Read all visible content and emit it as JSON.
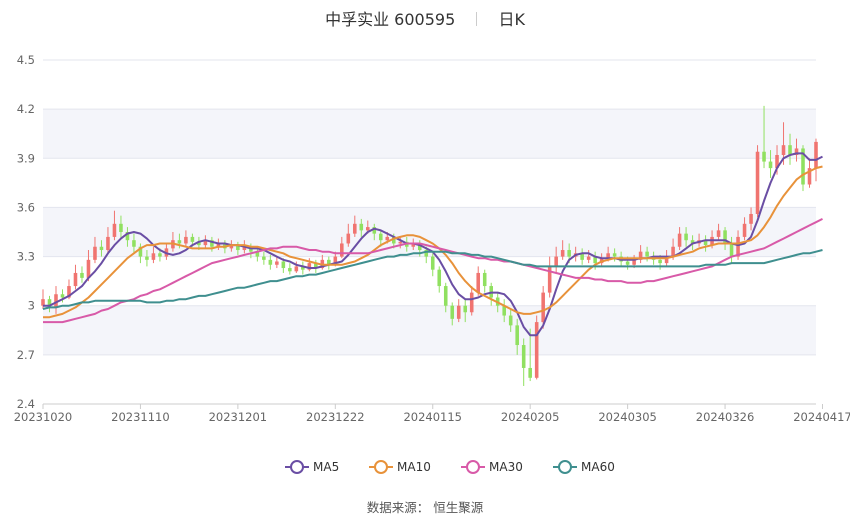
{
  "header": {
    "name": "中孚实业",
    "code": "600595",
    "period": "日K"
  },
  "footer": {
    "source_label": "数据来源：",
    "source_name": "恒生聚源"
  },
  "colors": {
    "up": "#f07470",
    "down": "#90e060",
    "ma5": "#6a4ea4",
    "ma10": "#e8923a",
    "ma30": "#d85aa8",
    "ma60": "#3f8f8f"
  },
  "chart_data": {
    "type": "candlestick",
    "ylim": [
      2.4,
      4.5
    ],
    "yticks": [
      2.4,
      2.7,
      3,
      3.3,
      3.6,
      3.9,
      4.2,
      4.5
    ],
    "ytick_labels": [
      "2.4",
      "2.7",
      "3",
      "3.3",
      "3.6",
      "3.9",
      "4.2",
      "4.5"
    ],
    "xtick_labels": [
      "20231020",
      "20231110",
      "20231201",
      "20231222",
      "20240115",
      "20240205",
      "20240305",
      "20240326",
      "20240417"
    ],
    "xtick_index": [
      0,
      15,
      30,
      45,
      60,
      75,
      90,
      105,
      120
    ],
    "candles": [
      [
        3.0,
        3.04,
        2.98,
        3.1
      ],
      [
        3.04,
        2.99,
        2.96,
        3.06
      ],
      [
        2.99,
        3.07,
        2.95,
        3.12
      ],
      [
        3.07,
        3.05,
        3.02,
        3.1
      ],
      [
        3.05,
        3.12,
        3.04,
        3.16
      ],
      [
        3.12,
        3.2,
        3.1,
        3.25
      ],
      [
        3.2,
        3.17,
        3.14,
        3.24
      ],
      [
        3.17,
        3.28,
        3.15,
        3.34
      ],
      [
        3.28,
        3.36,
        3.26,
        3.42
      ],
      [
        3.36,
        3.34,
        3.3,
        3.4
      ],
      [
        3.34,
        3.42,
        3.32,
        3.48
      ],
      [
        3.42,
        3.5,
        3.4,
        3.58
      ],
      [
        3.5,
        3.45,
        3.41,
        3.55
      ],
      [
        3.45,
        3.4,
        3.36,
        3.48
      ],
      [
        3.4,
        3.36,
        3.32,
        3.44
      ],
      [
        3.36,
        3.3,
        3.26,
        3.38
      ],
      [
        3.3,
        3.28,
        3.24,
        3.34
      ],
      [
        3.28,
        3.32,
        3.26,
        3.36
      ],
      [
        3.32,
        3.3,
        3.27,
        3.35
      ],
      [
        3.3,
        3.35,
        3.28,
        3.38
      ],
      [
        3.35,
        3.4,
        3.33,
        3.45
      ],
      [
        3.4,
        3.38,
        3.35,
        3.44
      ],
      [
        3.38,
        3.42,
        3.36,
        3.46
      ],
      [
        3.42,
        3.39,
        3.36,
        3.44
      ],
      [
        3.39,
        3.37,
        3.34,
        3.42
      ],
      [
        3.37,
        3.4,
        3.35,
        3.43
      ],
      [
        3.4,
        3.36,
        3.33,
        3.42
      ],
      [
        3.36,
        3.38,
        3.34,
        3.41
      ],
      [
        3.38,
        3.35,
        3.32,
        3.4
      ],
      [
        3.35,
        3.37,
        3.33,
        3.4
      ],
      [
        3.37,
        3.34,
        3.31,
        3.39
      ],
      [
        3.34,
        3.36,
        3.32,
        3.4
      ],
      [
        3.36,
        3.33,
        3.29,
        3.38
      ],
      [
        3.33,
        3.3,
        3.27,
        3.36
      ],
      [
        3.3,
        3.28,
        3.25,
        3.33
      ],
      [
        3.28,
        3.25,
        3.22,
        3.31
      ],
      [
        3.25,
        3.27,
        3.23,
        3.3
      ],
      [
        3.27,
        3.23,
        3.2,
        3.29
      ],
      [
        3.23,
        3.21,
        3.19,
        3.26
      ],
      [
        3.21,
        3.24,
        3.2,
        3.27
      ],
      [
        3.24,
        3.22,
        3.19,
        3.27
      ],
      [
        3.22,
        3.26,
        3.21,
        3.29
      ],
      [
        3.26,
        3.23,
        3.2,
        3.28
      ],
      [
        3.23,
        3.28,
        3.22,
        3.31
      ],
      [
        3.28,
        3.25,
        3.22,
        3.3
      ],
      [
        3.25,
        3.3,
        3.24,
        3.33
      ],
      [
        3.3,
        3.38,
        3.29,
        3.42
      ],
      [
        3.38,
        3.44,
        3.36,
        3.5
      ],
      [
        3.44,
        3.5,
        3.42,
        3.55
      ],
      [
        3.5,
        3.46,
        3.42,
        3.53
      ],
      [
        3.46,
        3.48,
        3.44,
        3.52
      ],
      [
        3.48,
        3.44,
        3.4,
        3.5
      ],
      [
        3.44,
        3.4,
        3.36,
        3.46
      ],
      [
        3.4,
        3.42,
        3.38,
        3.45
      ],
      [
        3.42,
        3.38,
        3.35,
        3.44
      ],
      [
        3.38,
        3.39,
        3.35,
        3.42
      ],
      [
        3.39,
        3.36,
        3.33,
        3.42
      ],
      [
        3.36,
        3.38,
        3.34,
        3.41
      ],
      [
        3.38,
        3.34,
        3.3,
        3.4
      ],
      [
        3.34,
        3.3,
        3.26,
        3.36
      ],
      [
        3.3,
        3.22,
        3.18,
        3.32
      ],
      [
        3.22,
        3.12,
        3.08,
        3.24
      ],
      [
        3.12,
        3.0,
        2.96,
        3.14
      ],
      [
        3.0,
        2.92,
        2.88,
        3.02
      ],
      [
        2.92,
        3.0,
        2.9,
        3.04
      ],
      [
        3.0,
        2.96,
        2.9,
        3.04
      ],
      [
        2.96,
        3.08,
        2.94,
        3.12
      ],
      [
        3.08,
        3.2,
        3.06,
        3.24
      ],
      [
        3.2,
        3.12,
        3.08,
        3.22
      ],
      [
        3.12,
        3.05,
        3.0,
        3.14
      ],
      [
        3.05,
        3.0,
        2.96,
        3.08
      ],
      [
        3.0,
        2.94,
        2.9,
        3.04
      ],
      [
        2.94,
        2.88,
        2.84,
        2.98
      ],
      [
        2.88,
        2.76,
        2.7,
        2.92
      ],
      [
        2.76,
        2.62,
        2.51,
        2.8
      ],
      [
        2.62,
        2.56,
        2.54,
        2.86
      ],
      [
        2.56,
        2.9,
        2.55,
        2.94
      ],
      [
        2.9,
        3.08,
        2.86,
        3.12
      ],
      [
        3.08,
        3.24,
        3.05,
        3.3
      ],
      [
        3.24,
        3.3,
        3.2,
        3.36
      ],
      [
        3.3,
        3.34,
        3.28,
        3.4
      ],
      [
        3.34,
        3.3,
        3.26,
        3.38
      ],
      [
        3.3,
        3.32,
        3.27,
        3.36
      ],
      [
        3.32,
        3.28,
        3.25,
        3.35
      ],
      [
        3.28,
        3.3,
        3.26,
        3.34
      ],
      [
        3.3,
        3.26,
        3.22,
        3.33
      ],
      [
        3.26,
        3.29,
        3.24,
        3.32
      ],
      [
        3.29,
        3.32,
        3.27,
        3.36
      ],
      [
        3.32,
        3.3,
        3.27,
        3.35
      ],
      [
        3.3,
        3.27,
        3.24,
        3.33
      ],
      [
        3.27,
        3.25,
        3.22,
        3.3
      ],
      [
        3.25,
        3.28,
        3.23,
        3.31
      ],
      [
        3.28,
        3.33,
        3.26,
        3.37
      ],
      [
        3.33,
        3.3,
        3.27,
        3.36
      ],
      [
        3.3,
        3.28,
        3.25,
        3.33
      ],
      [
        3.28,
        3.26,
        3.22,
        3.31
      ],
      [
        3.26,
        3.3,
        3.24,
        3.34
      ],
      [
        3.3,
        3.36,
        3.28,
        3.41
      ],
      [
        3.36,
        3.44,
        3.34,
        3.48
      ],
      [
        3.44,
        3.4,
        3.36,
        3.48
      ],
      [
        3.4,
        3.38,
        3.34,
        3.43
      ],
      [
        3.38,
        3.4,
        3.36,
        3.44
      ],
      [
        3.4,
        3.37,
        3.33,
        3.43
      ],
      [
        3.37,
        3.42,
        3.35,
        3.46
      ],
      [
        3.42,
        3.46,
        3.4,
        3.5
      ],
      [
        3.46,
        3.38,
        3.34,
        3.48
      ],
      [
        3.38,
        3.3,
        3.26,
        3.42
      ],
      [
        3.3,
        3.42,
        3.28,
        3.46
      ],
      [
        3.42,
        3.5,
        3.4,
        3.54
      ],
      [
        3.5,
        3.56,
        3.46,
        3.6
      ],
      [
        3.56,
        3.94,
        3.54,
        3.98
      ],
      [
        3.94,
        3.88,
        3.84,
        4.22
      ],
      [
        3.88,
        3.84,
        3.78,
        3.95
      ],
      [
        3.84,
        3.92,
        3.8,
        3.98
      ],
      [
        3.92,
        3.98,
        3.86,
        4.12
      ],
      [
        3.98,
        3.92,
        3.86,
        4.05
      ],
      [
        3.92,
        3.96,
        3.88,
        4.02
      ],
      [
        3.96,
        3.74,
        3.7,
        3.98
      ],
      [
        3.74,
        3.84,
        3.72,
        3.9
      ],
      [
        3.84,
        4.0,
        3.76,
        4.02
      ]
    ],
    "series": [
      {
        "name": "MA5",
        "values": [
          3.0,
          3.0,
          3.02,
          3.04,
          3.06,
          3.09,
          3.12,
          3.17,
          3.21,
          3.26,
          3.32,
          3.37,
          3.41,
          3.44,
          3.45,
          3.44,
          3.41,
          3.37,
          3.34,
          3.32,
          3.31,
          3.32,
          3.34,
          3.37,
          3.39,
          3.4,
          3.39,
          3.38,
          3.38,
          3.37,
          3.37,
          3.36,
          3.35,
          3.35,
          3.34,
          3.32,
          3.3,
          3.28,
          3.27,
          3.25,
          3.24,
          3.23,
          3.23,
          3.24,
          3.25,
          3.26,
          3.27,
          3.31,
          3.36,
          3.41,
          3.45,
          3.47,
          3.46,
          3.44,
          3.42,
          3.4,
          3.38,
          3.38,
          3.37,
          3.35,
          3.33,
          3.28,
          3.21,
          3.13,
          3.07,
          3.04,
          3.04,
          3.05,
          3.07,
          3.08,
          3.08,
          3.07,
          3.03,
          2.96,
          2.87,
          2.82,
          2.82,
          2.88,
          2.98,
          3.1,
          3.21,
          3.28,
          3.31,
          3.32,
          3.32,
          3.3,
          3.29,
          3.29,
          3.29,
          3.28,
          3.28,
          3.28,
          3.29,
          3.29,
          3.3,
          3.3,
          3.3,
          3.3,
          3.32,
          3.35,
          3.38,
          3.39,
          3.4,
          3.4,
          3.4,
          3.4,
          3.38,
          3.37,
          3.38,
          3.42,
          3.52,
          3.64,
          3.75,
          3.84,
          3.9,
          3.92,
          3.93,
          3.93,
          3.89,
          3.89,
          3.91
        ]
      },
      {
        "name": "MA10",
        "values": [
          2.93,
          2.93,
          2.94,
          2.95,
          2.97,
          2.99,
          3.02,
          3.05,
          3.09,
          3.13,
          3.17,
          3.21,
          3.25,
          3.29,
          3.32,
          3.35,
          3.37,
          3.37,
          3.38,
          3.38,
          3.38,
          3.37,
          3.36,
          3.35,
          3.35,
          3.35,
          3.35,
          3.36,
          3.36,
          3.37,
          3.37,
          3.37,
          3.36,
          3.36,
          3.35,
          3.34,
          3.33,
          3.32,
          3.3,
          3.29,
          3.28,
          3.27,
          3.26,
          3.25,
          3.25,
          3.25,
          3.25,
          3.26,
          3.27,
          3.29,
          3.31,
          3.34,
          3.37,
          3.39,
          3.41,
          3.42,
          3.43,
          3.43,
          3.42,
          3.4,
          3.38,
          3.35,
          3.31,
          3.26,
          3.2,
          3.15,
          3.11,
          3.08,
          3.06,
          3.04,
          3.02,
          3.0,
          2.98,
          2.96,
          2.95,
          2.95,
          2.96,
          2.97,
          2.99,
          3.02,
          3.06,
          3.1,
          3.14,
          3.18,
          3.22,
          3.25,
          3.27,
          3.28,
          3.29,
          3.29,
          3.29,
          3.29,
          3.29,
          3.29,
          3.29,
          3.29,
          3.29,
          3.3,
          3.31,
          3.32,
          3.33,
          3.35,
          3.36,
          3.37,
          3.38,
          3.38,
          3.38,
          3.38,
          3.39,
          3.4,
          3.43,
          3.48,
          3.54,
          3.61,
          3.67,
          3.72,
          3.77,
          3.8,
          3.82,
          3.84,
          3.85
        ]
      },
      {
        "name": "MA30",
        "values": [
          2.9,
          2.9,
          2.9,
          2.9,
          2.91,
          2.92,
          2.93,
          2.94,
          2.95,
          2.97,
          2.98,
          3.0,
          3.02,
          3.03,
          3.04,
          3.06,
          3.07,
          3.09,
          3.1,
          3.12,
          3.14,
          3.16,
          3.18,
          3.2,
          3.22,
          3.24,
          3.26,
          3.27,
          3.28,
          3.29,
          3.3,
          3.31,
          3.32,
          3.33,
          3.34,
          3.35,
          3.35,
          3.36,
          3.36,
          3.36,
          3.35,
          3.34,
          3.34,
          3.33,
          3.33,
          3.32,
          3.32,
          3.32,
          3.32,
          3.32,
          3.32,
          3.33,
          3.34,
          3.35,
          3.36,
          3.37,
          3.38,
          3.38,
          3.38,
          3.37,
          3.36,
          3.35,
          3.34,
          3.33,
          3.32,
          3.31,
          3.3,
          3.29,
          3.29,
          3.28,
          3.28,
          3.27,
          3.27,
          3.26,
          3.25,
          3.24,
          3.23,
          3.22,
          3.21,
          3.2,
          3.19,
          3.18,
          3.17,
          3.17,
          3.17,
          3.16,
          3.16,
          3.15,
          3.15,
          3.15,
          3.14,
          3.14,
          3.14,
          3.15,
          3.15,
          3.16,
          3.17,
          3.18,
          3.19,
          3.2,
          3.21,
          3.22,
          3.23,
          3.24,
          3.26,
          3.28,
          3.3,
          3.31,
          3.32,
          3.33,
          3.34,
          3.35,
          3.37,
          3.39,
          3.41,
          3.43,
          3.45,
          3.47,
          3.49,
          3.51,
          3.53
        ]
      },
      {
        "name": "MA60",
        "values": [
          2.98,
          2.99,
          2.99,
          3.0,
          3.0,
          3.01,
          3.02,
          3.02,
          3.03,
          3.03,
          3.03,
          3.03,
          3.03,
          3.03,
          3.03,
          3.03,
          3.02,
          3.02,
          3.02,
          3.03,
          3.03,
          3.04,
          3.04,
          3.05,
          3.06,
          3.06,
          3.07,
          3.08,
          3.09,
          3.1,
          3.11,
          3.11,
          3.12,
          3.13,
          3.14,
          3.15,
          3.15,
          3.16,
          3.17,
          3.18,
          3.18,
          3.19,
          3.19,
          3.2,
          3.21,
          3.22,
          3.23,
          3.24,
          3.25,
          3.26,
          3.27,
          3.28,
          3.29,
          3.3,
          3.3,
          3.31,
          3.31,
          3.32,
          3.32,
          3.33,
          3.33,
          3.33,
          3.33,
          3.32,
          3.32,
          3.32,
          3.31,
          3.31,
          3.3,
          3.3,
          3.29,
          3.28,
          3.27,
          3.26,
          3.25,
          3.25,
          3.24,
          3.24,
          3.24,
          3.24,
          3.24,
          3.24,
          3.24,
          3.24,
          3.24,
          3.24,
          3.24,
          3.24,
          3.24,
          3.24,
          3.24,
          3.24,
          3.24,
          3.24,
          3.24,
          3.24,
          3.24,
          3.24,
          3.24,
          3.24,
          3.24,
          3.24,
          3.25,
          3.25,
          3.25,
          3.25,
          3.26,
          3.26,
          3.26,
          3.26,
          3.26,
          3.26,
          3.27,
          3.28,
          3.29,
          3.3,
          3.31,
          3.32,
          3.32,
          3.33,
          3.34
        ]
      }
    ]
  }
}
